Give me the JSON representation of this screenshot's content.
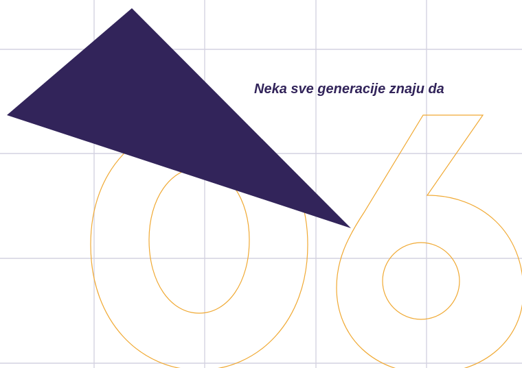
{
  "tagline": "Neka sve generacije znaju da",
  "big_number": "06",
  "colors": {
    "background": "#ffffff",
    "grid": "#d4d2e0",
    "digit_outline": "#f0a933",
    "triangle": "#32245a",
    "tagline": "#32245a"
  },
  "icons": {
    "triangle": "dark-triangle-shape",
    "digits": "outlined-number-06"
  }
}
